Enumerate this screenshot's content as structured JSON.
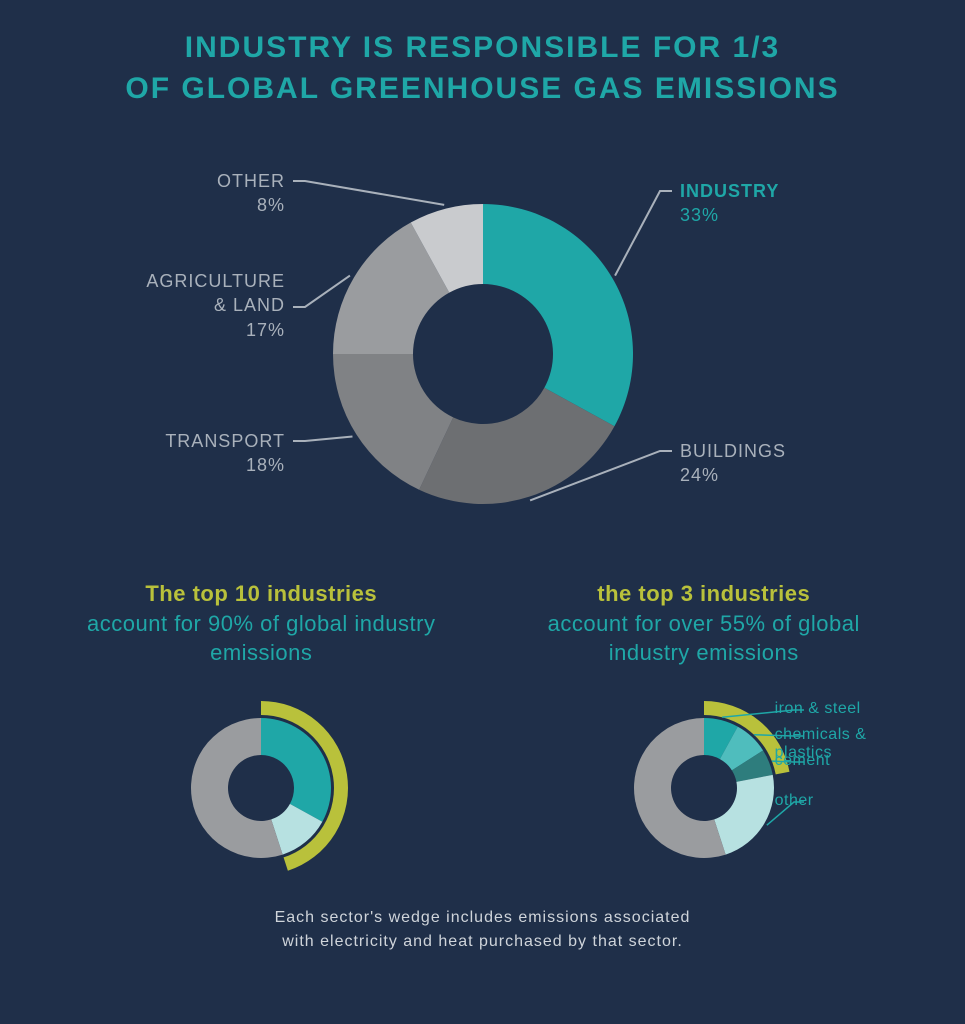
{
  "colors": {
    "background": "#1f2f49",
    "title": "#1fa7a7",
    "label_text": "#a9b1bb",
    "accent_teal": "#1fa7a7",
    "accent_lime": "#b9c13b",
    "footnote": "#cfd4da"
  },
  "title_line1": "INDUSTRY IS RESPONSIBLE FOR 1/3",
  "title_line2": "OF GLOBAL GREENHOUSE GAS EMISSIONS",
  "title_fontsize": 30,
  "title_letter_spacing": 2,
  "main_chart": {
    "type": "donut",
    "outer_radius": 150,
    "inner_radius": 70,
    "center_hole_color": "#1f2f49",
    "start_angle_deg": -90,
    "slices": [
      {
        "key": "industry",
        "label": "INDUSTRY",
        "pct_text": "33%",
        "value": 33,
        "color": "#1fa7a7",
        "highlight": true
      },
      {
        "key": "buildings",
        "label": "BUILDINGS",
        "pct_text": "24%",
        "value": 24,
        "color": "#6d6f72"
      },
      {
        "key": "transport",
        "label": "TRANSPORT",
        "pct_text": "18%",
        "value": 18,
        "color": "#808285"
      },
      {
        "key": "agriculture",
        "label": "AGRICULTURE\n& LAND",
        "pct_text": "17%",
        "value": 17,
        "color": "#9a9c9f"
      },
      {
        "key": "other",
        "label": "OTHER",
        "pct_text": "8%",
        "value": 8,
        "color": "#c9cbce"
      }
    ],
    "label_fontsize": 18
  },
  "sub_left": {
    "head_accent": "The top 10 industries",
    "head_rest": "account for 90% of global industry emissions",
    "head_fontsize": 22,
    "chart": {
      "type": "donut",
      "outer_radius": 70,
      "inner_radius": 33,
      "start_angle_deg": -90,
      "slices": [
        {
          "value": 33,
          "color": "#1fa7a7"
        },
        {
          "value": 12,
          "color": "#b7e1e1"
        },
        {
          "value": 55,
          "color": "#9a9c9f"
        }
      ],
      "arc": {
        "start_pct": 0,
        "end_pct": 45,
        "color": "#b9c13b",
        "radius": 80,
        "width": 14
      }
    }
  },
  "sub_right": {
    "head_accent": "the top 3 industries",
    "head_rest": "account for over 55% of global industry emissions",
    "head_fontsize": 22,
    "chart": {
      "type": "donut",
      "outer_radius": 70,
      "inner_radius": 33,
      "start_angle_deg": -90,
      "slices": [
        {
          "value": 8,
          "color": "#1fa7a7",
          "legend": "iron & steel"
        },
        {
          "value": 8,
          "color": "#4fbdbd",
          "legend": "chemicals & plastics"
        },
        {
          "value": 6,
          "color": "#2e7d7d",
          "legend": "cement"
        },
        {
          "value": 23,
          "color": "#b7e1e1",
          "legend": "other"
        },
        {
          "value": 55,
          "color": "#9a9c9f"
        }
      ],
      "arc": {
        "start_pct": 0,
        "end_pct": 22,
        "color": "#b9c13b",
        "radius": 80,
        "width": 14
      },
      "legend_fontsize": 16,
      "legend_color": "#1fa7a7"
    }
  },
  "footnote_line1": "Each sector's wedge includes emissions associated",
  "footnote_line2": "with electricity and heat purchased by that sector.",
  "footnote_fontsize": 16
}
